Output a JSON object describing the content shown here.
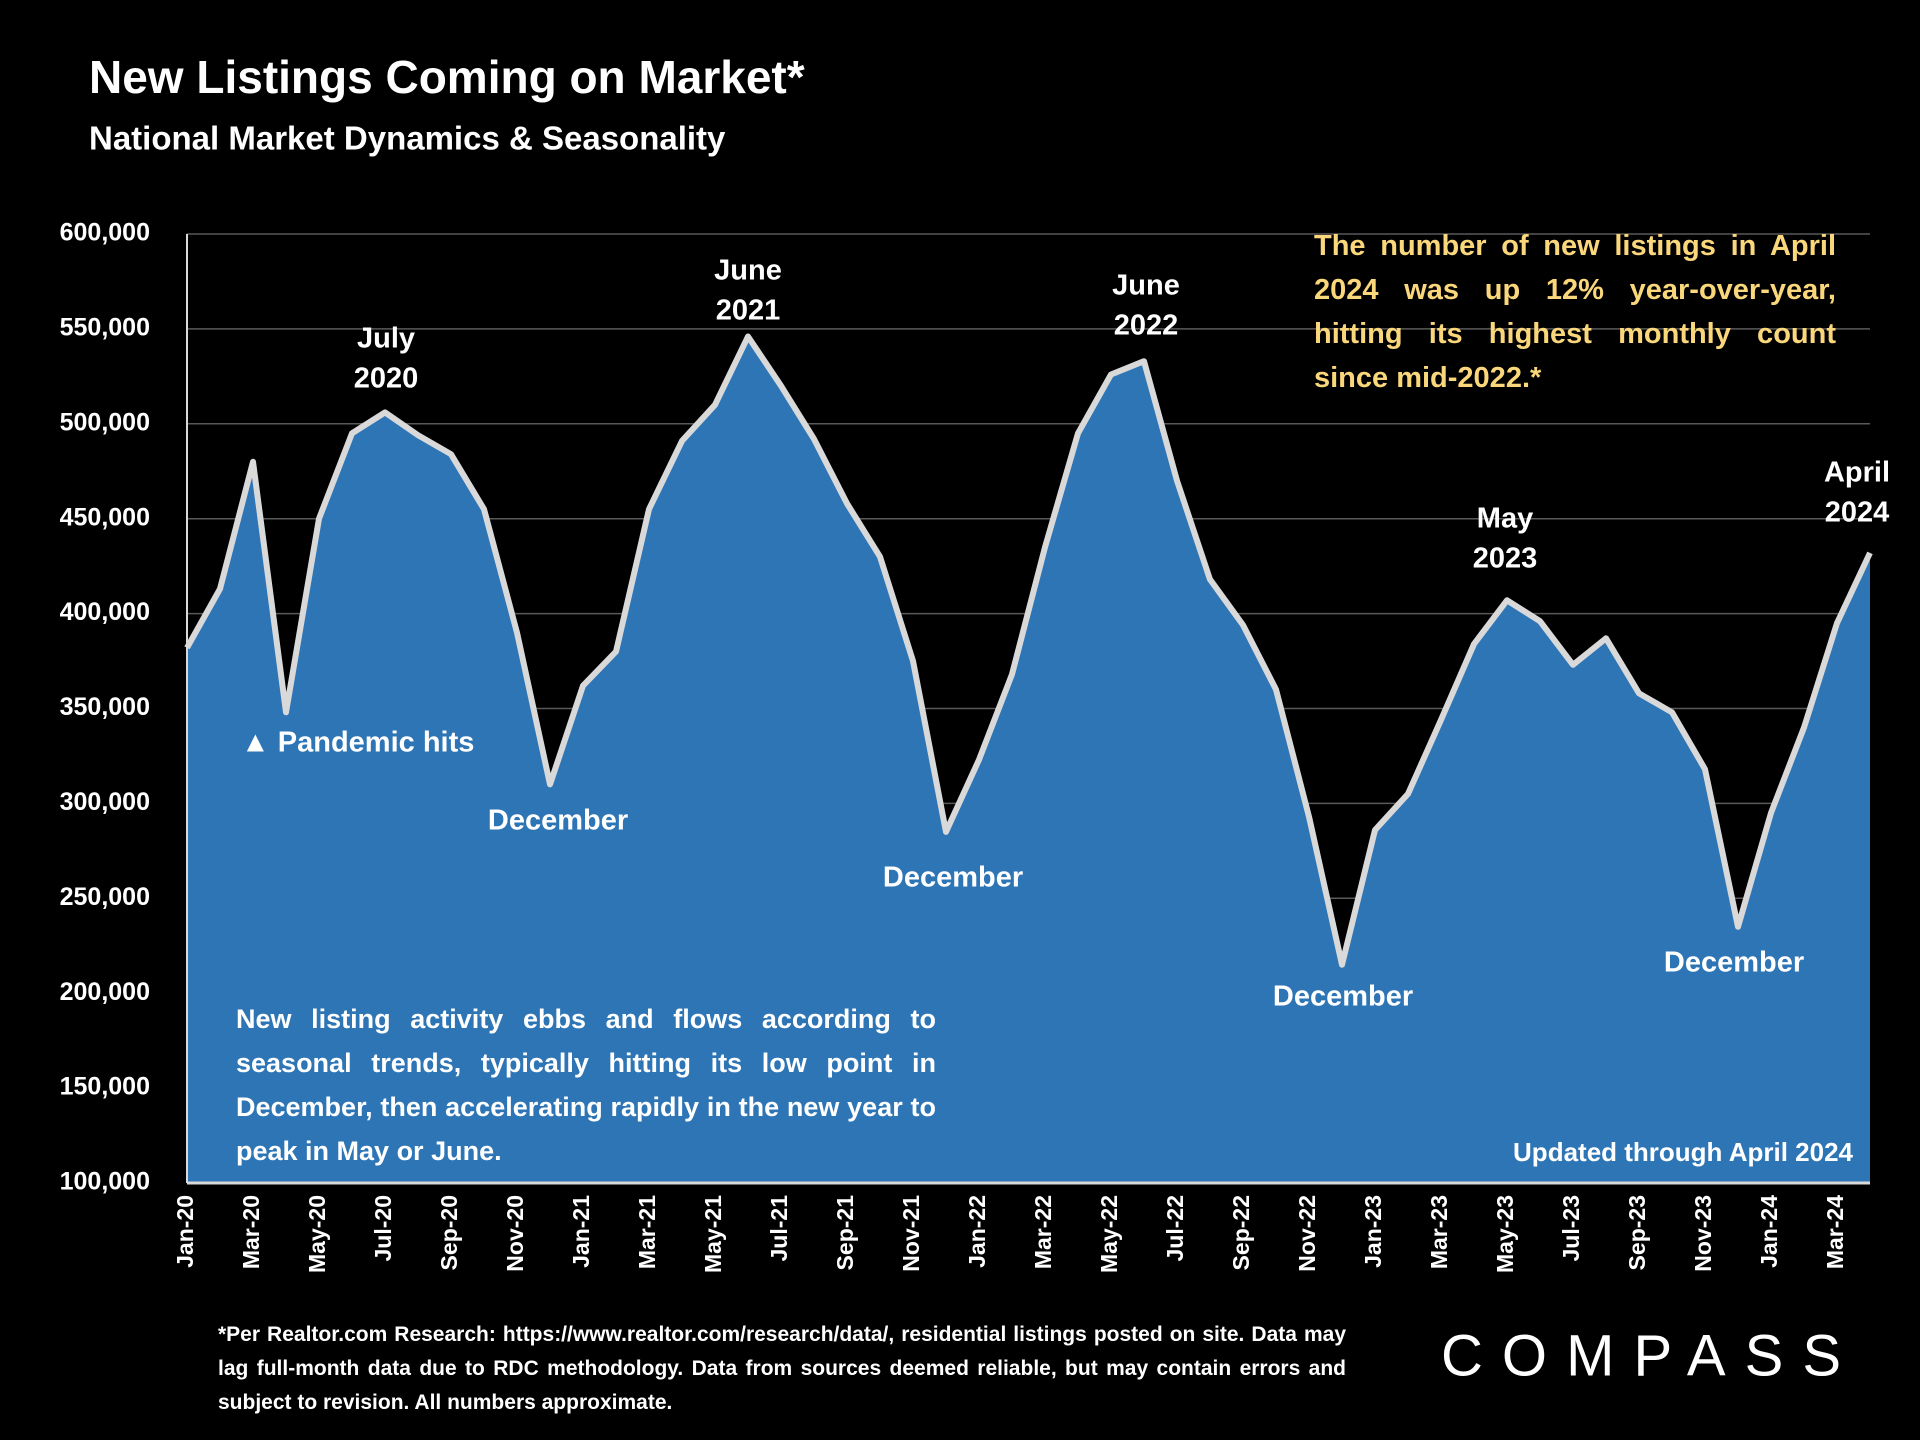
{
  "chart_data": {
    "type": "area",
    "title": "New Listings Coming on Market*",
    "subtitle": "National Market Dynamics & Seasonality",
    "categories": [
      "Jan-20",
      null,
      "Mar-20",
      null,
      "May-20",
      null,
      "Jul-20",
      null,
      "Sep-20",
      null,
      "Nov-20",
      null,
      "Jan-21",
      null,
      "Mar-21",
      null,
      "May-21",
      null,
      "Jul-21",
      null,
      "Sep-21",
      null,
      "Nov-21",
      null,
      "Jan-22",
      null,
      "Mar-22",
      null,
      "May-22",
      null,
      "Jul-22",
      null,
      "Sep-22",
      null,
      "Nov-22",
      null,
      "Jan-23",
      null,
      "Mar-23",
      null,
      "May-23",
      null,
      "Jul-23",
      null,
      "Sep-23",
      null,
      "Nov-23",
      null,
      "Jan-24",
      null,
      "Mar-24",
      null
    ],
    "values": [
      382000,
      413000,
      480000,
      348000,
      450000,
      495000,
      506000,
      494000,
      484000,
      455000,
      390000,
      310000,
      362000,
      380000,
      455000,
      491000,
      510000,
      546000,
      520000,
      492000,
      458000,
      430000,
      375000,
      285000,
      323000,
      368000,
      435000,
      495000,
      526000,
      533000,
      470000,
      418000,
      394000,
      360000,
      293000,
      215000,
      286000,
      305000,
      344000,
      384000,
      407000,
      396000,
      373000,
      387000,
      358000,
      348000,
      318000,
      235000,
      295000,
      340000,
      395000,
      432000
    ],
    "color": "#2e75b6",
    "line_color": "#d9d9d9",
    "ylim": [
      100000,
      600000
    ],
    "yticks": [
      {
        "value": 100000,
        "label": "100,000"
      },
      {
        "value": 150000,
        "label": "150,000"
      },
      {
        "value": 200000,
        "label": "200,000"
      },
      {
        "value": 250000,
        "label": "250,000"
      },
      {
        "value": 300000,
        "label": "300,000"
      },
      {
        "value": 350000,
        "label": "350,000"
      },
      {
        "value": 400000,
        "label": "400,000"
      },
      {
        "value": 450000,
        "label": "450,000"
      },
      {
        "value": 500000,
        "label": "500,000"
      },
      {
        "value": 550000,
        "label": "550,000"
      },
      {
        "value": 600000,
        "label": "600,000"
      }
    ],
    "grid": true,
    "annotations": [
      {
        "lines": [
          "July",
          "2020"
        ]
      },
      {
        "lines": [
          "June",
          "2021"
        ]
      },
      {
        "lines": [
          "June",
          "2022"
        ]
      },
      {
        "lines": [
          "May",
          "2023"
        ]
      },
      {
        "lines": [
          "April",
          "2024"
        ]
      },
      {
        "lines": [
          "▲ Pandemic hits"
        ]
      },
      {
        "lines": [
          "December"
        ]
      },
      {
        "lines": [
          "December"
        ]
      },
      {
        "lines": [
          "December"
        ]
      },
      {
        "lines": [
          "December"
        ]
      },
      {
        "lines": [
          "Updated through April 2024"
        ]
      }
    ],
    "highlight_note": "The number of new listings in April 2024 was up 12% year-over-year, hitting its highest monthly count since mid-2022.*",
    "seasonal_note": "New listing activity ebbs and flows according to seasonal trends, typically hitting its low point in December, then accelerating rapidly in the new year to peak in May or June."
  },
  "footnote": "*Per Realtor.com Research:  https://www.realtor.com/research/data/, residential listings posted on site. Data may lag full-month data due to RDC methodology. Data from sources deemed reliable, but may contain errors and subject to revision. All numbers approximate.",
  "logo": "COMPASS"
}
